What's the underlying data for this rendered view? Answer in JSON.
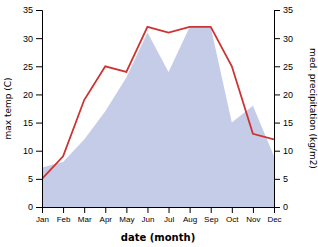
{
  "chart_data": {
    "type": "line",
    "categories": [
      "Jan",
      "Feb",
      "Mar",
      "Apr",
      "May",
      "Jun",
      "Jul",
      "Aug",
      "Sep",
      "Oct",
      "Nov",
      "Dec"
    ],
    "x_label": "date (month)",
    "y_label": "max temp (C)",
    "y2_label": "med. precipitation (kg/m2)",
    "ylim": [
      0,
      35
    ],
    "yticks": [
      0,
      5,
      10,
      15,
      20,
      25,
      30,
      35
    ],
    "y2lim": [
      0,
      35
    ],
    "y2ticks": [
      0,
      5,
      10,
      15,
      20,
      25,
      30,
      35
    ],
    "series": [
      {
        "type": "area",
        "color": "#c5cce8",
        "axis": "y2",
        "values": [
          7,
          8,
          12,
          17,
          23,
          31,
          24,
          32,
          32,
          15,
          18,
          9
        ]
      },
      {
        "type": "line",
        "color": "#cc3333",
        "values": [
          5,
          9,
          19,
          25,
          24,
          32,
          31,
          32,
          32,
          25,
          13,
          12
        ]
      }
    ]
  }
}
